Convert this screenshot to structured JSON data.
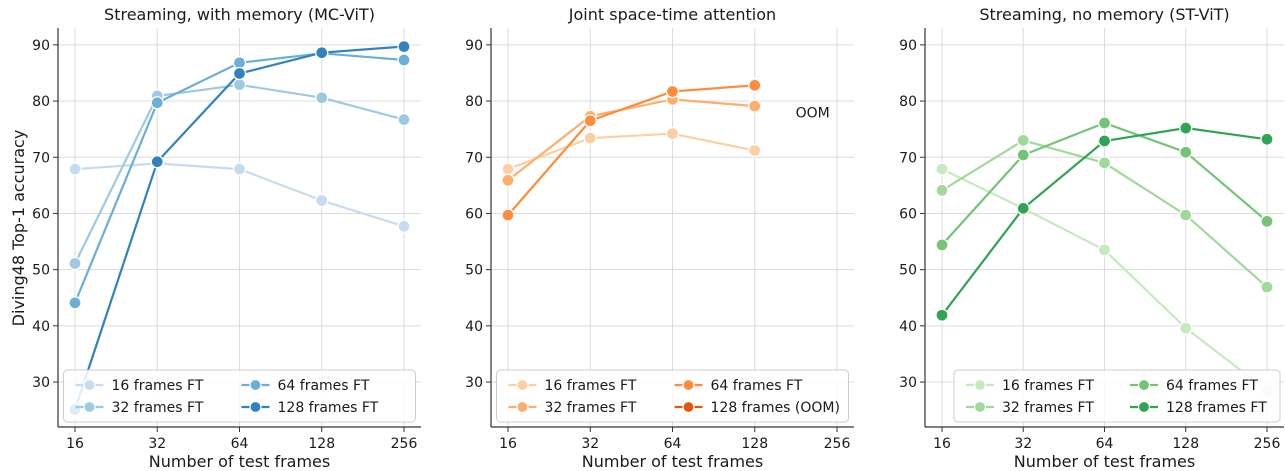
{
  "figure": {
    "ylabel": "Diving48 Top-1 accuracy"
  },
  "chart_data": [
    {
      "type": "line",
      "title": "Streaming, with memory (MC-ViT)",
      "xlabel": "Number of test frames",
      "ylabel": "Diving48 Top-1 accuracy",
      "x_scale": "log2",
      "x_ticks": [
        16,
        32,
        64,
        128,
        256
      ],
      "y_ticks": [
        30,
        40,
        50,
        60,
        70,
        80,
        90
      ],
      "ylim": [
        22,
        93
      ],
      "grid": true,
      "legend": {
        "position": "lower-center",
        "columns": 2
      },
      "annotations": [],
      "series": [
        {
          "name": "16 frames FT",
          "color": "#c6dbef",
          "x": [
            16,
            32,
            64,
            128,
            256
          ],
          "y": [
            67.9,
            68.9,
            67.9,
            62.3,
            57.7
          ]
        },
        {
          "name": "32 frames FT",
          "color": "#9ecae1",
          "x": [
            16,
            32,
            64,
            128,
            256
          ],
          "y": [
            51.1,
            80.9,
            82.9,
            80.6,
            76.7
          ]
        },
        {
          "name": "64 frames FT",
          "color": "#6baed6",
          "x": [
            16,
            32,
            64,
            128,
            256
          ],
          "y": [
            44.1,
            79.7,
            86.8,
            88.5,
            87.3
          ]
        },
        {
          "name": "128 frames FT",
          "color": "#3182bd",
          "x": [
            16,
            32,
            64,
            128,
            256
          ],
          "y": [
            25.1,
            69.2,
            84.9,
            88.6,
            89.7
          ]
        }
      ]
    },
    {
      "type": "line",
      "title": "Joint space-time attention",
      "xlabel": "Number of test frames",
      "ylabel": "",
      "x_scale": "log2",
      "x_ticks": [
        16,
        32,
        64,
        128,
        256
      ],
      "y_ticks": [
        30,
        40,
        50,
        60,
        70,
        80,
        90
      ],
      "ylim": [
        22,
        93
      ],
      "grid": true,
      "legend": {
        "position": "lower-center",
        "columns": 2
      },
      "annotations": [
        {
          "text": "OOM",
          "x": 190,
          "y": 78
        }
      ],
      "series": [
        {
          "name": "16 frames FT",
          "color": "#fdd0a2",
          "x": [
            16,
            32,
            64,
            128
          ],
          "y": [
            67.9,
            73.4,
            74.2,
            71.2
          ]
        },
        {
          "name": "32 frames FT",
          "color": "#fdae6b",
          "x": [
            16,
            32,
            64,
            128
          ],
          "y": [
            65.9,
            77.3,
            80.3,
            79.1
          ]
        },
        {
          "name": "64 frames FT",
          "color": "#fd8d3c",
          "x": [
            16,
            32,
            64,
            128
          ],
          "y": [
            59.7,
            76.5,
            81.7,
            82.8
          ]
        },
        {
          "name": "128 frames (OOM)",
          "color": "#e6550d",
          "x": [],
          "y": []
        }
      ]
    },
    {
      "type": "line",
      "title": "Streaming, no memory (ST-ViT)",
      "xlabel": "Number of test frames",
      "ylabel": "",
      "x_scale": "log2",
      "x_ticks": [
        16,
        32,
        64,
        128,
        256
      ],
      "y_ticks": [
        30,
        40,
        50,
        60,
        70,
        80,
        90
      ],
      "ylim": [
        22,
        93
      ],
      "grid": true,
      "legend": {
        "position": "lower-center",
        "columns": 2
      },
      "annotations": [],
      "series": [
        {
          "name": "16 frames FT",
          "color": "#c7e9c0",
          "x": [
            16,
            32,
            64,
            128,
            256
          ],
          "y": [
            67.9,
            60.9,
            53.5,
            39.6,
            28.5
          ]
        },
        {
          "name": "32 frames FT",
          "color": "#a1d99b",
          "x": [
            16,
            32,
            64,
            128,
            256
          ],
          "y": [
            64.1,
            73.0,
            69.0,
            59.7,
            46.9
          ]
        },
        {
          "name": "64 frames FT",
          "color": "#74c476",
          "x": [
            16,
            32,
            64,
            128,
            256
          ],
          "y": [
            54.4,
            70.4,
            76.1,
            70.9,
            58.6
          ]
        },
        {
          "name": "128 frames FT",
          "color": "#31a354",
          "x": [
            16,
            32,
            64,
            128,
            256
          ],
          "y": [
            41.9,
            60.9,
            72.9,
            75.2,
            73.2
          ]
        }
      ]
    }
  ]
}
